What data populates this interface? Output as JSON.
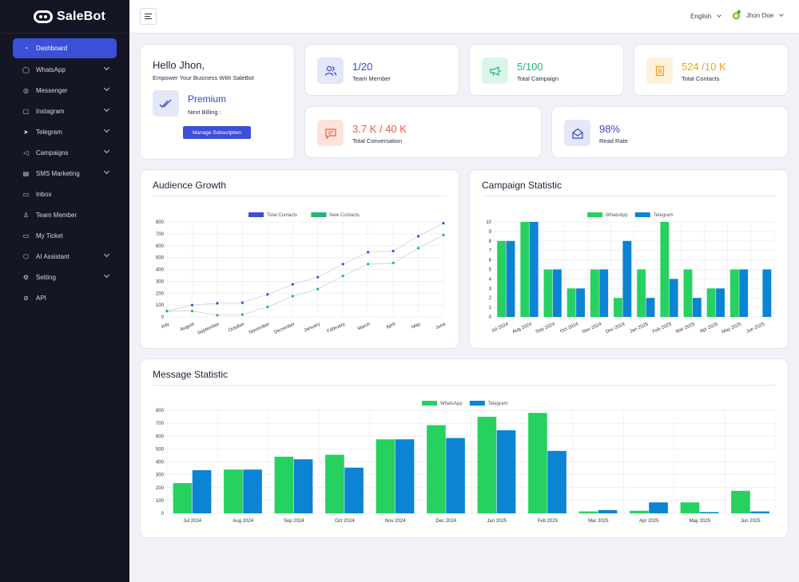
{
  "brand": {
    "name": "SaleBot"
  },
  "sidebar": {
    "items": [
      {
        "label": "Dashboard",
        "icon": "gauge-icon",
        "active": true,
        "submenu": false
      },
      {
        "label": "WhatsApp",
        "icon": "whatsapp-icon",
        "submenu": true
      },
      {
        "label": "Messenger",
        "icon": "messenger-icon",
        "submenu": true
      },
      {
        "label": "Instagram",
        "icon": "instagram-icon",
        "submenu": true
      },
      {
        "label": "Telegram",
        "icon": "telegram-icon",
        "submenu": true
      },
      {
        "label": "Campaigns",
        "icon": "megaphone-icon",
        "submenu": true
      },
      {
        "label": "SMS Marketing",
        "icon": "sms-icon",
        "submenu": true
      },
      {
        "label": "Inbox",
        "icon": "inbox-icon",
        "submenu": false
      },
      {
        "label": "Team Member",
        "icon": "team-icon",
        "submenu": false
      },
      {
        "label": "My Ticket",
        "icon": "ticket-icon",
        "submenu": false
      },
      {
        "label": "AI Assistant",
        "icon": "ai-icon",
        "submenu": true
      },
      {
        "label": "Setting",
        "icon": "gear-icon",
        "submenu": true
      },
      {
        "label": "API",
        "icon": "link-icon",
        "submenu": false
      }
    ]
  },
  "topbar": {
    "language": "English",
    "user": "Jhon Doe"
  },
  "welcome": {
    "title": "Hello Jhon,",
    "subtitle": "Empower Your Business With SaleBot",
    "plan": "Premium",
    "billing": "Next Billing :",
    "button": "Manage Subscription"
  },
  "stats": [
    {
      "value": "1/20",
      "label": "Team Member",
      "color": "#3646c8",
      "bg": "#e4e7f8",
      "icon": "users-icon"
    },
    {
      "value": "5/100",
      "label": "Total Campaign",
      "color": "#22b573",
      "bg": "#dcf5ea",
      "icon": "megaphone-icon"
    },
    {
      "value": "524 /10 K",
      "label": "Total Contacts",
      "color": "#f0a020",
      "bg": "#fdf1da",
      "icon": "contact-icon"
    },
    {
      "value": "3.7 K / 40 K",
      "label": "Total Conversation",
      "color": "#ef5a3c",
      "bg": "#fde3dc",
      "icon": "chat-icon"
    },
    {
      "value": "98%",
      "label": "Read Rate",
      "color": "#3646c8",
      "bg": "#e4e7f8",
      "icon": "envelope-open-icon"
    }
  ],
  "charts": {
    "audience": {
      "title": "Audience Growth",
      "chart_data": {
        "type": "line",
        "categories": [
          "July",
          "August",
          "September",
          "October",
          "November",
          "December",
          "January",
          "February",
          "March",
          "April",
          "May",
          "June"
        ],
        "series": [
          {
            "name": "Total Contacts",
            "color": "#3b4fd8",
            "values": [
              50,
              100,
              115,
              120,
              190,
              275,
              335,
              445,
              545,
              555,
              680,
              790
            ]
          },
          {
            "name": "New Contacts",
            "color": "#22b573",
            "values": [
              50,
              50,
              15,
              20,
              85,
              175,
              235,
              345,
              445,
              455,
              580,
              690
            ]
          }
        ],
        "ylim": [
          0,
          800
        ],
        "yticks": [
          "0",
          "100",
          "200",
          "300",
          "400",
          "500",
          "600",
          "700",
          "800"
        ],
        "grid": true,
        "legend": "top"
      }
    },
    "campaign": {
      "title": "Campaign Statistic",
      "chart_data": {
        "type": "bar",
        "categories": [
          "Jul 2024",
          "Aug 2024",
          "Sep 2024",
          "Oct 2024",
          "Nov 2024",
          "Dec 2024",
          "Jan 2025",
          "Feb 2025",
          "Mar 2025",
          "Apr 2025",
          "May 2025",
          "Jun 2025"
        ],
        "series": [
          {
            "name": "WhatsApp",
            "color": "#26d160",
            "values": [
              8,
              10,
              5,
              3,
              5,
              2,
              5,
              10,
              5,
              3,
              5,
              0
            ]
          },
          {
            "name": "Telegram",
            "color": "#0b84d4",
            "values": [
              8,
              10,
              5,
              3,
              5,
              8,
              2,
              4,
              2,
              3,
              5,
              5
            ]
          }
        ],
        "ylim": [
          0,
          10
        ],
        "yticks": [
          "0",
          "1",
          "2",
          "3",
          "4",
          "5",
          "6",
          "7",
          "8",
          "9",
          "10"
        ],
        "grid": true,
        "legend": "top"
      }
    },
    "message": {
      "title": "Message Statistic",
      "chart_data": {
        "type": "bar",
        "categories": [
          "Jul 2024",
          "Aug 2024",
          "Sep 2024",
          "Oct 2024",
          "Nov 2024",
          "Dec 2024",
          "Jan 2025",
          "Feb 2025",
          "Mar 2025",
          "Apr 2025",
          "May 2025",
          "Jun 2025"
        ],
        "series": [
          {
            "name": "WhatsApp",
            "color": "#26d160",
            "values": [
              235,
              340,
              440,
              455,
              575,
              685,
              750,
              780,
              15,
              20,
              85,
              175
            ]
          },
          {
            "name": "Telegram",
            "color": "#0b84d4",
            "values": [
              335,
              340,
              420,
              355,
              575,
              585,
              645,
              485,
              25,
              85,
              10,
              15
            ]
          }
        ],
        "ylim": [
          0,
          800
        ],
        "yticks": [
          "0",
          "100",
          "200",
          "300",
          "400",
          "500",
          "600",
          "700",
          "800"
        ],
        "grid": true,
        "legend": "top"
      }
    }
  }
}
